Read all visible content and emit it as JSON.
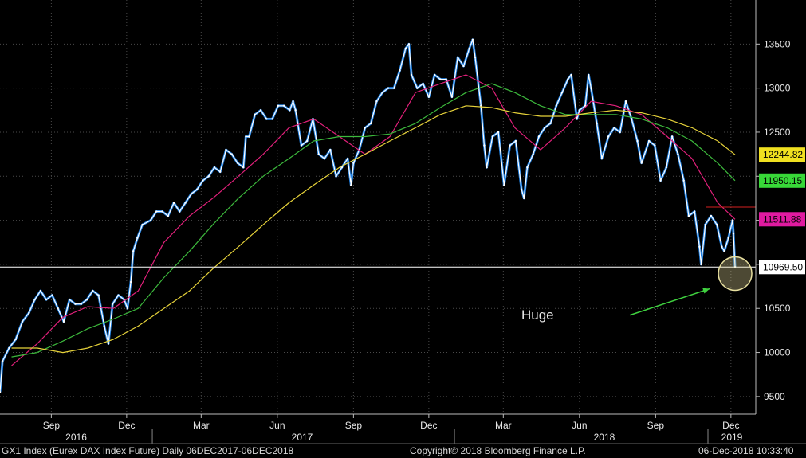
{
  "footer": {
    "left": "GX1 Index (Eurex DAX Index Future)  Daily 06DEC2017-06DEC2018",
    "center": "Copyright© 2018 Bloomberg Finance L.P.",
    "right": "06-Dec-2018 10:33:40"
  },
  "annotation": {
    "text": "Huge"
  },
  "colors": {
    "background": "#000000",
    "price": "#ffffff",
    "price_shadow": "#1f7fe0",
    "ma_short": "#e0207a",
    "ma_mid": "#3cb83c",
    "ma_long": "#e6d23a",
    "current_line": "#ffffff",
    "ma_short_level_line": "#d42020",
    "label_yellow_bg": "#f0e020",
    "label_green_bg": "#38d838",
    "label_magenta_bg": "#e01aa0",
    "label_white_bg": "#ffffff"
  },
  "chart_data": {
    "type": "line",
    "title": "",
    "xlabel": "",
    "ylabel": "",
    "ylim": [
      9300,
      14000
    ],
    "y_ticks": [
      9500,
      10000,
      10500,
      11000,
      11500,
      12000,
      12500,
      13000,
      13500
    ],
    "y_tick_labels": [
      "9500",
      "10000",
      "10500",
      "",
      "",
      "",
      "12500",
      "13000",
      "13500"
    ],
    "x_month_ticks": [
      "Sep",
      "Dec",
      "Mar",
      "Jun",
      "Sep",
      "Dec",
      "Mar",
      "Jun",
      "Sep",
      "Dec"
    ],
    "x_year_labels": [
      "2016",
      "2017",
      "2018",
      "2019"
    ],
    "x_range": [
      "2016-07-01",
      "2018-12-31"
    ],
    "current_labels": [
      {
        "series": "MA long",
        "value": "12244.82",
        "color_key": "label_yellow_bg"
      },
      {
        "series": "MA mid",
        "value": "11950.15",
        "color_key": "label_green_bg"
      },
      {
        "series": "MA short",
        "value": "11511.88",
        "color_key": "label_magenta_bg"
      },
      {
        "series": "Last",
        "value": "10969.50",
        "color_key": "label_white_bg"
      }
    ],
    "series": [
      {
        "key": "price",
        "points": [
          [
            "2016-07-01",
            9550
          ],
          [
            "2016-07-04",
            9900
          ],
          [
            "2016-07-12",
            10050
          ],
          [
            "2016-07-20",
            10150
          ],
          [
            "2016-07-28",
            10350
          ],
          [
            "2016-08-05",
            10450
          ],
          [
            "2016-08-12",
            10600
          ],
          [
            "2016-08-19",
            10700
          ],
          [
            "2016-08-26",
            10600
          ],
          [
            "2016-09-02",
            10650
          ],
          [
            "2016-09-09",
            10500
          ],
          [
            "2016-09-16",
            10350
          ],
          [
            "2016-09-23",
            10600
          ],
          [
            "2016-09-30",
            10550
          ],
          [
            "2016-10-07",
            10550
          ],
          [
            "2016-10-14",
            10600
          ],
          [
            "2016-10-21",
            10700
          ],
          [
            "2016-10-28",
            10650
          ],
          [
            "2016-11-04",
            10300
          ],
          [
            "2016-11-09",
            10100
          ],
          [
            "2016-11-14",
            10550
          ],
          [
            "2016-11-21",
            10650
          ],
          [
            "2016-11-28",
            10600
          ],
          [
            "2016-12-02",
            10500
          ],
          [
            "2016-12-06",
            10800
          ],
          [
            "2016-12-09",
            11150
          ],
          [
            "2016-12-14",
            11300
          ],
          [
            "2016-12-20",
            11450
          ],
          [
            "2016-12-30",
            11500
          ],
          [
            "2017-01-06",
            11600
          ],
          [
            "2017-01-13",
            11600
          ],
          [
            "2017-01-20",
            11550
          ],
          [
            "2017-01-27",
            11700
          ],
          [
            "2017-02-03",
            11600
          ],
          [
            "2017-02-10",
            11700
          ],
          [
            "2017-02-17",
            11800
          ],
          [
            "2017-02-24",
            11850
          ],
          [
            "2017-03-03",
            11950
          ],
          [
            "2017-03-10",
            12000
          ],
          [
            "2017-03-17",
            12100
          ],
          [
            "2017-03-24",
            12050
          ],
          [
            "2017-03-31",
            12300
          ],
          [
            "2017-04-07",
            12250
          ],
          [
            "2017-04-14",
            12150
          ],
          [
            "2017-04-21",
            12100
          ],
          [
            "2017-04-24",
            12450
          ],
          [
            "2017-04-28",
            12450
          ],
          [
            "2017-05-05",
            12700
          ],
          [
            "2017-05-12",
            12750
          ],
          [
            "2017-05-19",
            12650
          ],
          [
            "2017-05-26",
            12650
          ],
          [
            "2017-06-02",
            12800
          ],
          [
            "2017-06-09",
            12800
          ],
          [
            "2017-06-16",
            12750
          ],
          [
            "2017-06-20",
            12850
          ],
          [
            "2017-06-23",
            12750
          ],
          [
            "2017-06-30",
            12350
          ],
          [
            "2017-07-07",
            12400
          ],
          [
            "2017-07-14",
            12650
          ],
          [
            "2017-07-21",
            12250
          ],
          [
            "2017-07-28",
            12200
          ],
          [
            "2017-08-04",
            12300
          ],
          [
            "2017-08-11",
            12000
          ],
          [
            "2017-08-18",
            12100
          ],
          [
            "2017-08-25",
            12200
          ],
          [
            "2017-08-29",
            11900
          ],
          [
            "2017-09-01",
            12150
          ],
          [
            "2017-09-08",
            12300
          ],
          [
            "2017-09-15",
            12550
          ],
          [
            "2017-09-22",
            12600
          ],
          [
            "2017-09-29",
            12850
          ],
          [
            "2017-10-06",
            12950
          ],
          [
            "2017-10-13",
            13000
          ],
          [
            "2017-10-20",
            13000
          ],
          [
            "2017-10-27",
            13200
          ],
          [
            "2017-11-03",
            13450
          ],
          [
            "2017-11-07",
            13500
          ],
          [
            "2017-11-10",
            13150
          ],
          [
            "2017-11-17",
            13000
          ],
          [
            "2017-11-24",
            13050
          ],
          [
            "2017-12-01",
            12900
          ],
          [
            "2017-12-08",
            13150
          ],
          [
            "2017-12-15",
            13100
          ],
          [
            "2017-12-22",
            13100
          ],
          [
            "2017-12-29",
            12900
          ],
          [
            "2018-01-05",
            13350
          ],
          [
            "2018-01-12",
            13250
          ],
          [
            "2018-01-19",
            13450
          ],
          [
            "2018-01-23",
            13550
          ],
          [
            "2018-01-26",
            13350
          ],
          [
            "2018-02-02",
            12800
          ],
          [
            "2018-02-06",
            12350
          ],
          [
            "2018-02-09",
            12100
          ],
          [
            "2018-02-16",
            12450
          ],
          [
            "2018-02-23",
            12500
          ],
          [
            "2018-03-02",
            11900
          ],
          [
            "2018-03-09",
            12350
          ],
          [
            "2018-03-16",
            12400
          ],
          [
            "2018-03-23",
            11850
          ],
          [
            "2018-03-26",
            11750
          ],
          [
            "2018-03-30",
            12100
          ],
          [
            "2018-04-06",
            12250
          ],
          [
            "2018-04-13",
            12450
          ],
          [
            "2018-04-20",
            12550
          ],
          [
            "2018-04-27",
            12600
          ],
          [
            "2018-05-04",
            12800
          ],
          [
            "2018-05-11",
            12950
          ],
          [
            "2018-05-18",
            13100
          ],
          [
            "2018-05-22",
            13150
          ],
          [
            "2018-05-29",
            12650
          ],
          [
            "2018-06-01",
            12750
          ],
          [
            "2018-06-08",
            12800
          ],
          [
            "2018-06-12",
            13150
          ],
          [
            "2018-06-15",
            13000
          ],
          [
            "2018-06-22",
            12600
          ],
          [
            "2018-06-28",
            12200
          ],
          [
            "2018-07-06",
            12450
          ],
          [
            "2018-07-13",
            12550
          ],
          [
            "2018-07-20",
            12500
          ],
          [
            "2018-07-27",
            12850
          ],
          [
            "2018-08-03",
            12650
          ],
          [
            "2018-08-10",
            12400
          ],
          [
            "2018-08-15",
            12150
          ],
          [
            "2018-08-24",
            12400
          ],
          [
            "2018-08-31",
            12350
          ],
          [
            "2018-09-07",
            11950
          ],
          [
            "2018-09-14",
            12100
          ],
          [
            "2018-09-21",
            12450
          ],
          [
            "2018-09-28",
            12250
          ],
          [
            "2018-10-05",
            11950
          ],
          [
            "2018-10-11",
            11550
          ],
          [
            "2018-10-18",
            11600
          ],
          [
            "2018-10-24",
            11200
          ],
          [
            "2018-10-26",
            11000
          ],
          [
            "2018-10-31",
            11450
          ],
          [
            "2018-11-07",
            11550
          ],
          [
            "2018-11-14",
            11450
          ],
          [
            "2018-11-20",
            11200
          ],
          [
            "2018-11-23",
            11150
          ],
          [
            "2018-11-28",
            11300
          ],
          [
            "2018-12-03",
            11500
          ],
          [
            "2018-12-04",
            11350
          ],
          [
            "2018-12-06",
            10970
          ]
        ]
      },
      {
        "key": "ma_short",
        "points": [
          [
            "2016-07-15",
            9850
          ],
          [
            "2016-08-15",
            10100
          ],
          [
            "2016-09-15",
            10400
          ],
          [
            "2016-10-15",
            10520
          ],
          [
            "2016-11-15",
            10500
          ],
          [
            "2016-12-15",
            10700
          ],
          [
            "2017-01-15",
            11250
          ],
          [
            "2017-02-15",
            11550
          ],
          [
            "2017-03-15",
            11750
          ],
          [
            "2017-04-15",
            12000
          ],
          [
            "2017-05-15",
            12250
          ],
          [
            "2017-06-15",
            12550
          ],
          [
            "2017-07-15",
            12650
          ],
          [
            "2017-08-15",
            12450
          ],
          [
            "2017-09-15",
            12250
          ],
          [
            "2017-10-15",
            12450
          ],
          [
            "2017-11-15",
            12950
          ],
          [
            "2017-12-15",
            13050
          ],
          [
            "2018-01-15",
            13150
          ],
          [
            "2018-02-15",
            13000
          ],
          [
            "2018-03-15",
            12550
          ],
          [
            "2018-04-15",
            12300
          ],
          [
            "2018-05-15",
            12550
          ],
          [
            "2018-06-15",
            12850
          ],
          [
            "2018-07-15",
            12800
          ],
          [
            "2018-08-15",
            12700
          ],
          [
            "2018-09-15",
            12450
          ],
          [
            "2018-10-15",
            12200
          ],
          [
            "2018-11-15",
            11700
          ],
          [
            "2018-12-06",
            11512
          ]
        ]
      },
      {
        "key": "ma_mid",
        "points": [
          [
            "2016-07-15",
            9950
          ],
          [
            "2016-08-15",
            10000
          ],
          [
            "2016-09-15",
            10130
          ],
          [
            "2016-10-15",
            10270
          ],
          [
            "2016-11-15",
            10380
          ],
          [
            "2016-12-15",
            10500
          ],
          [
            "2017-01-15",
            10850
          ],
          [
            "2017-02-15",
            11150
          ],
          [
            "2017-03-15",
            11450
          ],
          [
            "2017-04-15",
            11750
          ],
          [
            "2017-05-15",
            12000
          ],
          [
            "2017-06-15",
            12200
          ],
          [
            "2017-07-15",
            12400
          ],
          [
            "2017-08-15",
            12450
          ],
          [
            "2017-09-15",
            12450
          ],
          [
            "2017-10-15",
            12480
          ],
          [
            "2017-11-15",
            12600
          ],
          [
            "2017-12-15",
            12780
          ],
          [
            "2018-01-15",
            12950
          ],
          [
            "2018-02-15",
            13050
          ],
          [
            "2018-03-15",
            12950
          ],
          [
            "2018-04-15",
            12800
          ],
          [
            "2018-05-15",
            12700
          ],
          [
            "2018-06-15",
            12700
          ],
          [
            "2018-07-15",
            12700
          ],
          [
            "2018-08-15",
            12650
          ],
          [
            "2018-09-15",
            12550
          ],
          [
            "2018-10-15",
            12400
          ],
          [
            "2018-11-15",
            12150
          ],
          [
            "2018-12-06",
            11950
          ]
        ]
      },
      {
        "key": "ma_long",
        "points": [
          [
            "2016-07-15",
            10050
          ],
          [
            "2016-08-15",
            10050
          ],
          [
            "2016-09-15",
            10000
          ],
          [
            "2016-10-15",
            10050
          ],
          [
            "2016-11-15",
            10150
          ],
          [
            "2016-12-15",
            10300
          ],
          [
            "2017-01-15",
            10500
          ],
          [
            "2017-02-15",
            10700
          ],
          [
            "2017-03-15",
            10950
          ],
          [
            "2017-04-15",
            11200
          ],
          [
            "2017-05-15",
            11450
          ],
          [
            "2017-06-15",
            11700
          ],
          [
            "2017-07-15",
            11900
          ],
          [
            "2017-08-15",
            12100
          ],
          [
            "2017-09-15",
            12250
          ],
          [
            "2017-10-15",
            12400
          ],
          [
            "2017-11-15",
            12550
          ],
          [
            "2017-12-15",
            12700
          ],
          [
            "2018-01-15",
            12800
          ],
          [
            "2018-02-15",
            12780
          ],
          [
            "2018-03-15",
            12720
          ],
          [
            "2018-04-15",
            12680
          ],
          [
            "2018-05-15",
            12680
          ],
          [
            "2018-06-15",
            12720
          ],
          [
            "2018-07-15",
            12750
          ],
          [
            "2018-08-15",
            12720
          ],
          [
            "2018-09-15",
            12650
          ],
          [
            "2018-10-15",
            12550
          ],
          [
            "2018-11-15",
            12400
          ],
          [
            "2018-12-06",
            12245
          ]
        ]
      }
    ],
    "reference_lines": [
      {
        "key": "current_line",
        "value": 10969.5,
        "from": "2016-07-01",
        "to": "2018-12-31"
      },
      {
        "key": "ma_short_level_line",
        "value": 11650,
        "from": "2018-11-01",
        "to": "2018-12-31"
      }
    ],
    "annotations": [
      {
        "type": "circle",
        "center": [
          "2018-12-06",
          10950
        ]
      },
      {
        "type": "arrow",
        "from": [
          "2018-08-01",
          10650
        ],
        "to": [
          "2018-11-15",
          10850
        ]
      }
    ]
  }
}
